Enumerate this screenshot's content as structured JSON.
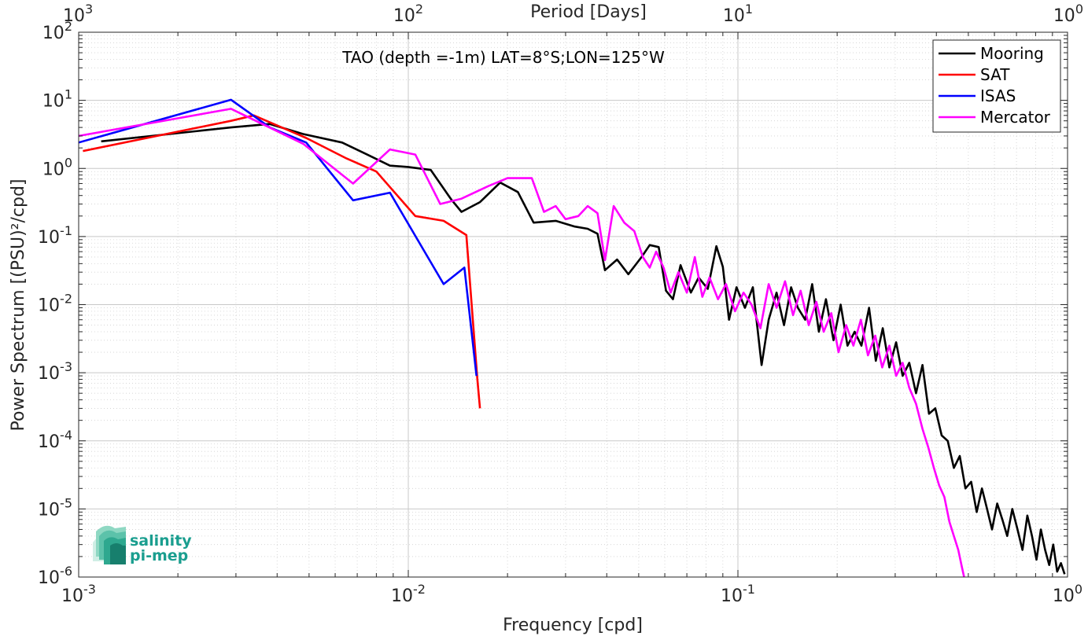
{
  "chart_data": {
    "type": "line",
    "title": "TAO (depth =-1m) LAT=8°S;LON=125°W",
    "xlabel": "Frequency [cpd]",
    "ylabel": "Power Spectrum [(PSU)²/cpd]",
    "top_xlabel": "Period [Days]",
    "x_scale": "log",
    "y_scale": "log",
    "xlim": [
      0.001,
      1
    ],
    "ylim": [
      1e-06,
      100
    ],
    "grid": true,
    "legend_position": "top-right",
    "x_ticks": [
      {
        "value": 0.001,
        "base": "10",
        "exp": "-3"
      },
      {
        "value": 0.01,
        "base": "10",
        "exp": "-2"
      },
      {
        "value": 0.1,
        "base": "10",
        "exp": "-1"
      },
      {
        "value": 1,
        "base": "10",
        "exp": "0"
      }
    ],
    "top_ticks": [
      {
        "value": 0.001,
        "base": "10",
        "exp": "3"
      },
      {
        "value": 0.01,
        "base": "10",
        "exp": "2"
      },
      {
        "value": 0.1,
        "base": "10",
        "exp": "1"
      },
      {
        "value": 1,
        "base": "10",
        "exp": "0"
      }
    ],
    "y_ticks": [
      {
        "value": 100,
        "base": "10",
        "exp": "2"
      },
      {
        "value": 10,
        "base": "10",
        "exp": "1"
      },
      {
        "value": 1,
        "base": "10",
        "exp": "0"
      },
      {
        "value": 0.1,
        "base": "10",
        "exp": "-1"
      },
      {
        "value": 0.01,
        "base": "10",
        "exp": "-2"
      },
      {
        "value": 0.001,
        "base": "10",
        "exp": "-3"
      },
      {
        "value": 0.0001,
        "base": "10",
        "exp": "-4"
      },
      {
        "value": 1e-05,
        "base": "10",
        "exp": "-5"
      },
      {
        "value": 1e-06,
        "base": "10",
        "exp": "-6"
      }
    ],
    "series": [
      {
        "name": "Mooring",
        "color": "#000000",
        "points": [
          [
            0.00117,
            2.5
          ],
          [
            0.0029,
            4.0
          ],
          [
            0.0038,
            4.5
          ],
          [
            0.0048,
            3.2
          ],
          [
            0.0063,
            2.4
          ],
          [
            0.0075,
            1.6
          ],
          [
            0.0088,
            1.1
          ],
          [
            0.01,
            1.05
          ],
          [
            0.0117,
            0.95
          ],
          [
            0.0135,
            0.35
          ],
          [
            0.0145,
            0.23
          ],
          [
            0.0165,
            0.32
          ],
          [
            0.019,
            0.62
          ],
          [
            0.0215,
            0.45
          ],
          [
            0.024,
            0.16
          ],
          [
            0.028,
            0.17
          ],
          [
            0.032,
            0.14
          ],
          [
            0.035,
            0.13
          ],
          [
            0.0375,
            0.11
          ],
          [
            0.0395,
            0.032
          ],
          [
            0.043,
            0.046
          ],
          [
            0.0465,
            0.028
          ],
          [
            0.051,
            0.05
          ],
          [
            0.054,
            0.075
          ],
          [
            0.0575,
            0.07
          ],
          [
            0.0605,
            0.016
          ],
          [
            0.0635,
            0.012
          ],
          [
            0.067,
            0.038
          ],
          [
            0.072,
            0.015
          ],
          [
            0.076,
            0.025
          ],
          [
            0.081,
            0.017
          ],
          [
            0.086,
            0.072
          ],
          [
            0.09,
            0.036
          ],
          [
            0.094,
            0.006
          ],
          [
            0.099,
            0.018
          ],
          [
            0.105,
            0.009
          ],
          [
            0.111,
            0.018
          ],
          [
            0.118,
            0.0013
          ],
          [
            0.124,
            0.006
          ],
          [
            0.131,
            0.015
          ],
          [
            0.138,
            0.005
          ],
          [
            0.145,
            0.018
          ],
          [
            0.152,
            0.009
          ],
          [
            0.16,
            0.006
          ],
          [
            0.168,
            0.02
          ],
          [
            0.176,
            0.004
          ],
          [
            0.185,
            0.012
          ],
          [
            0.195,
            0.003
          ],
          [
            0.205,
            0.01
          ],
          [
            0.215,
            0.0025
          ],
          [
            0.226,
            0.004
          ],
          [
            0.237,
            0.0025
          ],
          [
            0.25,
            0.009
          ],
          [
            0.262,
            0.0015
          ],
          [
            0.275,
            0.0045
          ],
          [
            0.288,
            0.0012
          ],
          [
            0.302,
            0.0028
          ],
          [
            0.316,
            0.0009
          ],
          [
            0.331,
            0.0014
          ],
          [
            0.347,
            0.0005
          ],
          [
            0.363,
            0.0013
          ],
          [
            0.38,
            0.00025
          ],
          [
            0.397,
            0.0003
          ],
          [
            0.415,
            0.00012
          ],
          [
            0.433,
            0.0001
          ],
          [
            0.452,
            4e-05
          ],
          [
            0.471,
            6e-05
          ],
          [
            0.49,
            2e-05
          ],
          [
            0.51,
            2.5e-05
          ],
          [
            0.53,
            9e-06
          ],
          [
            0.55,
            2e-05
          ],
          [
            0.57,
            1e-05
          ],
          [
            0.59,
            5e-06
          ],
          [
            0.612,
            1.2e-05
          ],
          [
            0.634,
            7e-06
          ],
          [
            0.656,
            4e-06
          ],
          [
            0.68,
            1e-05
          ],
          [
            0.705,
            5e-06
          ],
          [
            0.73,
            2.5e-06
          ],
          [
            0.755,
            8e-06
          ],
          [
            0.78,
            4e-06
          ],
          [
            0.805,
            1.8e-06
          ],
          [
            0.83,
            5e-06
          ],
          [
            0.855,
            2.5e-06
          ],
          [
            0.88,
            1.5e-06
          ],
          [
            0.905,
            3e-06
          ],
          [
            0.93,
            1.2e-06
          ],
          [
            0.955,
            1.6e-06
          ],
          [
            0.98,
            1.1e-06
          ]
        ]
      },
      {
        "name": "SAT",
        "color": "#ff0000",
        "points": [
          [
            0.00103,
            1.8
          ],
          [
            0.0029,
            5.0
          ],
          [
            0.0034,
            6.0
          ],
          [
            0.0049,
            2.8
          ],
          [
            0.0065,
            1.4
          ],
          [
            0.008,
            0.9
          ],
          [
            0.0105,
            0.2
          ],
          [
            0.0128,
            0.17
          ],
          [
            0.015,
            0.105
          ],
          [
            0.0162,
            0.0008
          ],
          [
            0.0165,
            0.0003
          ]
        ]
      },
      {
        "name": "ISAS",
        "color": "#0000ff",
        "points": [
          [
            0.001,
            2.4
          ],
          [
            0.0029,
            10.2
          ],
          [
            0.0038,
            4.0
          ],
          [
            0.0049,
            2.4
          ],
          [
            0.0068,
            0.34
          ],
          [
            0.0088,
            0.44
          ],
          [
            0.0128,
            0.02
          ],
          [
            0.0148,
            0.035
          ],
          [
            0.0161,
            0.0009
          ]
        ]
      },
      {
        "name": "Mercator",
        "color": "#ff00ff",
        "points": [
          [
            0.001,
            3.0
          ],
          [
            0.0029,
            7.5
          ],
          [
            0.0048,
            2.3
          ],
          [
            0.0068,
            0.6
          ],
          [
            0.0088,
            1.9
          ],
          [
            0.0105,
            1.6
          ],
          [
            0.0125,
            0.3
          ],
          [
            0.0145,
            0.36
          ],
          [
            0.0175,
            0.55
          ],
          [
            0.02,
            0.72
          ],
          [
            0.0237,
            0.72
          ],
          [
            0.0258,
            0.23
          ],
          [
            0.028,
            0.28
          ],
          [
            0.03,
            0.18
          ],
          [
            0.0328,
            0.2
          ],
          [
            0.035,
            0.28
          ],
          [
            0.0375,
            0.22
          ],
          [
            0.0395,
            0.045
          ],
          [
            0.042,
            0.28
          ],
          [
            0.0452,
            0.16
          ],
          [
            0.0485,
            0.12
          ],
          [
            0.0515,
            0.05
          ],
          [
            0.054,
            0.035
          ],
          [
            0.0565,
            0.06
          ],
          [
            0.0595,
            0.035
          ],
          [
            0.0625,
            0.015
          ],
          [
            0.066,
            0.03
          ],
          [
            0.07,
            0.015
          ],
          [
            0.074,
            0.05
          ],
          [
            0.078,
            0.013
          ],
          [
            0.082,
            0.025
          ],
          [
            0.087,
            0.012
          ],
          [
            0.092,
            0.02
          ],
          [
            0.098,
            0.008
          ],
          [
            0.104,
            0.015
          ],
          [
            0.11,
            0.01
          ],
          [
            0.117,
            0.0045
          ],
          [
            0.124,
            0.02
          ],
          [
            0.131,
            0.009
          ],
          [
            0.139,
            0.022
          ],
          [
            0.147,
            0.007
          ],
          [
            0.155,
            0.016
          ],
          [
            0.164,
            0.005
          ],
          [
            0.173,
            0.011
          ],
          [
            0.182,
            0.004
          ],
          [
            0.192,
            0.0075
          ],
          [
            0.202,
            0.002
          ],
          [
            0.213,
            0.005
          ],
          [
            0.224,
            0.0025
          ],
          [
            0.236,
            0.006
          ],
          [
            0.248,
            0.0018
          ],
          [
            0.261,
            0.0035
          ],
          [
            0.274,
            0.0012
          ],
          [
            0.288,
            0.0025
          ],
          [
            0.302,
            0.0009
          ],
          [
            0.316,
            0.0014
          ],
          [
            0.331,
            0.0006
          ],
          [
            0.347,
            0.00035
          ],
          [
            0.363,
            0.00015
          ],
          [
            0.378,
            8e-05
          ],
          [
            0.393,
            4e-05
          ],
          [
            0.408,
            2.2e-05
          ],
          [
            0.423,
            1.5e-05
          ],
          [
            0.438,
            6.5e-06
          ],
          [
            0.452,
            4e-06
          ],
          [
            0.466,
            2.5e-06
          ],
          [
            0.478,
            1.4e-06
          ],
          [
            0.488,
            9e-07
          ]
        ]
      }
    ]
  },
  "logo": {
    "line1": "salinity",
    "line2": "pi-mep"
  }
}
